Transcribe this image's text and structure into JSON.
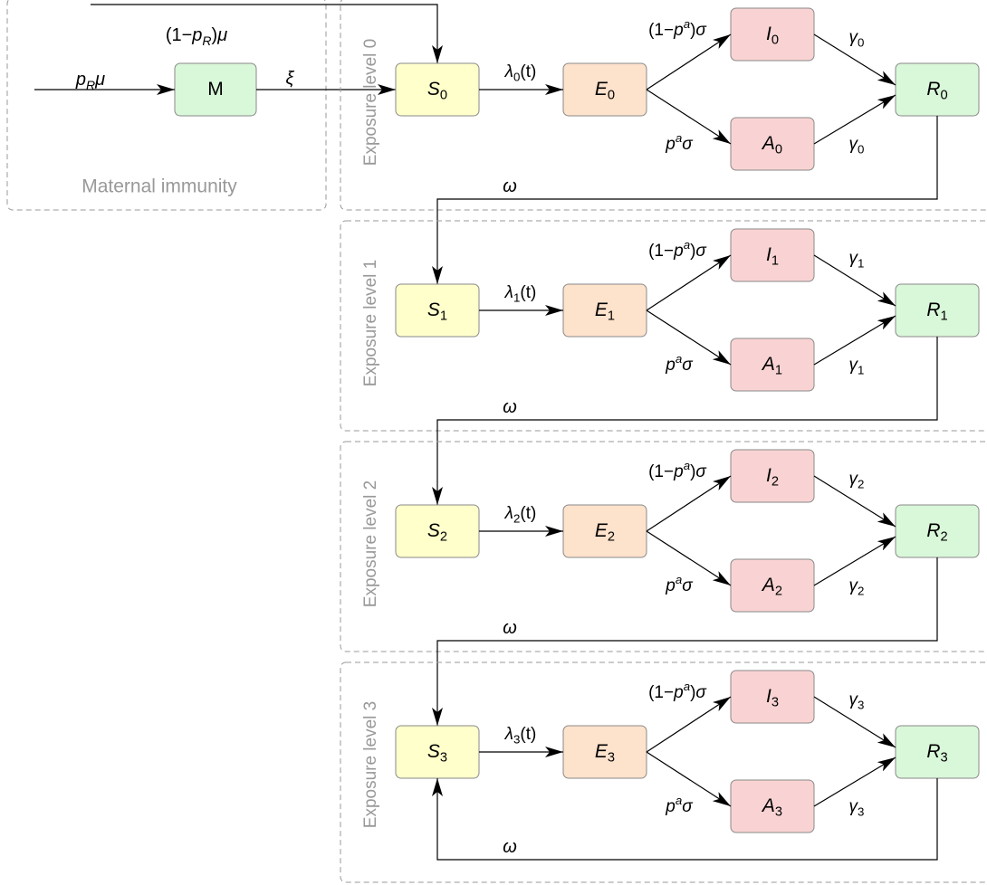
{
  "maternal": {
    "title": "Maternal immunity",
    "node": [
      {
        "text": "M"
      }
    ],
    "inflow": [
      {
        "text": "p",
        "italic": true
      },
      {
        "text": "R",
        "italic": true,
        "pos": "sub"
      },
      {
        "text": "μ",
        "italic": true
      }
    ],
    "loss": [
      {
        "text": "(1−"
      },
      {
        "text": "p",
        "italic": true
      },
      {
        "text": "R",
        "italic": true,
        "pos": "sub"
      },
      {
        "text": ")"
      },
      {
        "text": "μ",
        "italic": true
      }
    ],
    "outflow": [
      {
        "text": "ξ",
        "italic": true
      }
    ]
  },
  "levels": [
    {
      "label": "Exposure level 0",
      "S": [
        {
          "text": "S",
          "italic": true
        },
        {
          "text": "0",
          "pos": "sub"
        }
      ],
      "E": [
        {
          "text": "E",
          "italic": true
        },
        {
          "text": "0",
          "pos": "sub"
        }
      ],
      "I": [
        {
          "text": "I",
          "italic": true
        },
        {
          "text": "0",
          "pos": "sub"
        }
      ],
      "A": [
        {
          "text": "A",
          "italic": true
        },
        {
          "text": "0",
          "pos": "sub"
        }
      ],
      "R": [
        {
          "text": "R",
          "italic": true
        },
        {
          "text": "0",
          "pos": "sub"
        }
      ],
      "infection": [
        {
          "text": "λ",
          "italic": true
        },
        {
          "text": "0",
          "pos": "sub"
        },
        {
          "text": "(t)"
        }
      ],
      "symptomatic": [
        {
          "text": "(1−"
        },
        {
          "text": "p",
          "italic": true
        },
        {
          "text": "a",
          "italic": true,
          "pos": "sup"
        },
        {
          "text": ")"
        },
        {
          "text": "σ",
          "italic": true
        }
      ],
      "asymptomatic": [
        {
          "text": "p",
          "italic": true
        },
        {
          "text": "a",
          "italic": true,
          "pos": "sup"
        },
        {
          "text": "σ",
          "italic": true
        }
      ],
      "recovery_I": [
        {
          "text": "γ",
          "italic": true
        },
        {
          "text": "0",
          "pos": "sub"
        }
      ],
      "recovery_A": [
        {
          "text": "γ",
          "italic": true
        },
        {
          "text": "0",
          "pos": "sub"
        }
      ],
      "waning": [
        {
          "text": "ω",
          "italic": true
        }
      ]
    },
    {
      "label": "Exposure level 1",
      "S": [
        {
          "text": "S",
          "italic": true
        },
        {
          "text": "1",
          "pos": "sub"
        }
      ],
      "E": [
        {
          "text": "E",
          "italic": true
        },
        {
          "text": "1",
          "pos": "sub"
        }
      ],
      "I": [
        {
          "text": "I",
          "italic": true
        },
        {
          "text": "1",
          "pos": "sub"
        }
      ],
      "A": [
        {
          "text": "A",
          "italic": true
        },
        {
          "text": "1",
          "pos": "sub"
        }
      ],
      "R": [
        {
          "text": "R",
          "italic": true
        },
        {
          "text": "1",
          "pos": "sub"
        }
      ],
      "infection": [
        {
          "text": "λ",
          "italic": true
        },
        {
          "text": "1",
          "pos": "sub"
        },
        {
          "text": "(t)"
        }
      ],
      "symptomatic": [
        {
          "text": "(1−"
        },
        {
          "text": "p",
          "italic": true
        },
        {
          "text": "a",
          "italic": true,
          "pos": "sup"
        },
        {
          "text": ")"
        },
        {
          "text": "σ",
          "italic": true
        }
      ],
      "asymptomatic": [
        {
          "text": "p",
          "italic": true
        },
        {
          "text": "a",
          "italic": true,
          "pos": "sup"
        },
        {
          "text": "σ",
          "italic": true
        }
      ],
      "recovery_I": [
        {
          "text": "γ",
          "italic": true
        },
        {
          "text": "1",
          "pos": "sub"
        }
      ],
      "recovery_A": [
        {
          "text": "γ",
          "italic": true
        },
        {
          "text": "1",
          "pos": "sub"
        }
      ],
      "waning": [
        {
          "text": "ω",
          "italic": true
        }
      ]
    },
    {
      "label": "Exposure level 2",
      "S": [
        {
          "text": "S",
          "italic": true
        },
        {
          "text": "2",
          "pos": "sub"
        }
      ],
      "E": [
        {
          "text": "E",
          "italic": true
        },
        {
          "text": "2",
          "pos": "sub"
        }
      ],
      "I": [
        {
          "text": "I",
          "italic": true
        },
        {
          "text": "2",
          "pos": "sub"
        }
      ],
      "A": [
        {
          "text": "A",
          "italic": true
        },
        {
          "text": "2",
          "pos": "sub"
        }
      ],
      "R": [
        {
          "text": "R",
          "italic": true
        },
        {
          "text": "2",
          "pos": "sub"
        }
      ],
      "infection": [
        {
          "text": "λ",
          "italic": true
        },
        {
          "text": "2",
          "pos": "sub"
        },
        {
          "text": "(t)"
        }
      ],
      "symptomatic": [
        {
          "text": "(1−"
        },
        {
          "text": "p",
          "italic": true
        },
        {
          "text": "a",
          "italic": true,
          "pos": "sup"
        },
        {
          "text": ")"
        },
        {
          "text": "σ",
          "italic": true
        }
      ],
      "asymptomatic": [
        {
          "text": "p",
          "italic": true
        },
        {
          "text": "a",
          "italic": true,
          "pos": "sup"
        },
        {
          "text": "σ",
          "italic": true
        }
      ],
      "recovery_I": [
        {
          "text": "γ",
          "italic": true
        },
        {
          "text": "2",
          "pos": "sub"
        }
      ],
      "recovery_A": [
        {
          "text": "γ",
          "italic": true
        },
        {
          "text": "2",
          "pos": "sub"
        }
      ],
      "waning": [
        {
          "text": "ω",
          "italic": true
        }
      ]
    },
    {
      "label": "Exposure level 3",
      "S": [
        {
          "text": "S",
          "italic": true
        },
        {
          "text": "3",
          "pos": "sub"
        }
      ],
      "E": [
        {
          "text": "E",
          "italic": true
        },
        {
          "text": "3",
          "pos": "sub"
        }
      ],
      "I": [
        {
          "text": "I",
          "italic": true
        },
        {
          "text": "3",
          "pos": "sub"
        }
      ],
      "A": [
        {
          "text": "A",
          "italic": true
        },
        {
          "text": "3",
          "pos": "sub"
        }
      ],
      "R": [
        {
          "text": "R",
          "italic": true
        },
        {
          "text": "3",
          "pos": "sub"
        }
      ],
      "infection": [
        {
          "text": "λ",
          "italic": true
        },
        {
          "text": "3",
          "pos": "sub"
        },
        {
          "text": "(t)"
        }
      ],
      "symptomatic": [
        {
          "text": "(1−"
        },
        {
          "text": "p",
          "italic": true
        },
        {
          "text": "a",
          "italic": true,
          "pos": "sup"
        },
        {
          "text": ")"
        },
        {
          "text": "σ",
          "italic": true
        }
      ],
      "asymptomatic": [
        {
          "text": "p",
          "italic": true
        },
        {
          "text": "a",
          "italic": true,
          "pos": "sup"
        },
        {
          "text": "σ",
          "italic": true
        }
      ],
      "recovery_I": [
        {
          "text": "γ",
          "italic": true
        },
        {
          "text": "3",
          "pos": "sub"
        }
      ],
      "recovery_A": [
        {
          "text": "γ",
          "italic": true
        },
        {
          "text": "3",
          "pos": "sub"
        }
      ],
      "waning": [
        {
          "text": "ω",
          "italic": true
        }
      ]
    }
  ]
}
